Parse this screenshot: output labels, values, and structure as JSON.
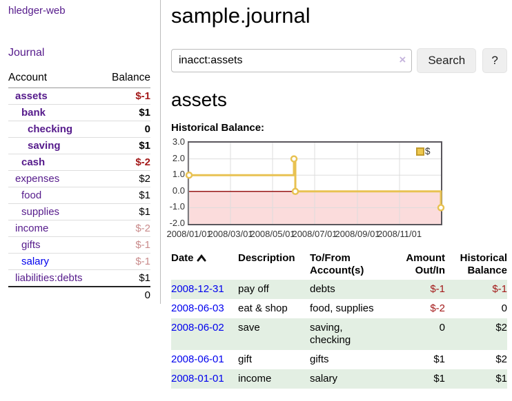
{
  "app": {
    "brand": "hledger-web"
  },
  "sidebar": {
    "journal_link": "Journal",
    "accounts": {
      "col_account": "Account",
      "col_balance": "Balance",
      "rows": [
        {
          "name": "assets",
          "balance": "$-1",
          "depth": 1,
          "bold": true,
          "name_color": "purple",
          "balance_style": "neg-strong"
        },
        {
          "name": "bank",
          "balance": "$1",
          "depth": 2,
          "bold": true,
          "name_color": "purple",
          "balance_style": "pos-strong"
        },
        {
          "name": "checking",
          "balance": "0",
          "depth": 3,
          "bold": true,
          "name_color": "purple",
          "balance_style": "pos-strong"
        },
        {
          "name": "saving",
          "balance": "$1",
          "depth": 3,
          "bold": true,
          "name_color": "purple",
          "balance_style": "pos-strong"
        },
        {
          "name": "cash",
          "balance": "$-2",
          "depth": 2,
          "bold": true,
          "name_color": "purple",
          "balance_style": "neg-strong"
        },
        {
          "name": "expenses",
          "balance": "$2",
          "depth": 1,
          "bold": false,
          "name_color": "purple",
          "balance_style": "pos"
        },
        {
          "name": "food",
          "balance": "$1",
          "depth": 2,
          "bold": false,
          "name_color": "purple",
          "balance_style": "pos"
        },
        {
          "name": "supplies",
          "balance": "$1",
          "depth": 2,
          "bold": false,
          "name_color": "purple",
          "balance_style": "pos"
        },
        {
          "name": "income",
          "balance": "$-2",
          "depth": 1,
          "bold": false,
          "name_color": "purple",
          "balance_style": "neg-soft"
        },
        {
          "name": "gifts",
          "balance": "$-1",
          "depth": 2,
          "bold": false,
          "name_color": "purple",
          "balance_style": "neg-soft"
        },
        {
          "name": "salary",
          "balance": "$-1",
          "depth": 2,
          "bold": false,
          "name_color": "blue",
          "balance_style": "neg-soft"
        },
        {
          "name": "liabilities:debts",
          "balance": "$1",
          "depth": 1,
          "bold": false,
          "name_color": "purple",
          "balance_style": "pos"
        }
      ],
      "total": "0"
    }
  },
  "main": {
    "title": "sample.journal",
    "search": {
      "value": "inacct:assets",
      "clear": "×",
      "search_button": "Search",
      "help_button": "?"
    },
    "account_title": "assets",
    "section_label": "Historical Balance:"
  },
  "chart_data": {
    "type": "line",
    "title": "Historical Balance",
    "legend_label": "$",
    "x_range": [
      "2008-01-01",
      "2008-12-31"
    ],
    "ylim": [
      -2,
      3
    ],
    "y_ticks": [
      "3.0",
      "2.0",
      "1.0",
      "0.0",
      "-1.0",
      "-2.0"
    ],
    "x_tick_labels": [
      "2008/01/01",
      "2008/03/01",
      "2008/05/01",
      "2008/07/01",
      "2008/09/01",
      "2008/11/01"
    ],
    "x_tick_dates": [
      "2008-01-01",
      "2008-03-01",
      "2008-05-01",
      "2008-07-01",
      "2008-09-01",
      "2008-11-01"
    ],
    "series": [
      {
        "name": "$",
        "color": "#e8c252",
        "points": [
          {
            "date": "2008-01-01",
            "value": 1
          },
          {
            "date": "2008-06-01",
            "value": 2
          },
          {
            "date": "2008-06-03",
            "value": 0
          },
          {
            "date": "2008-12-31",
            "value": -1
          }
        ]
      }
    ],
    "step": "after",
    "grid": true,
    "legend_position": "top-right",
    "zero_line_color": "#8b0000",
    "negative_fill": "#fbdcdc"
  },
  "register": {
    "headers": {
      "date": "Date",
      "description": "Description",
      "tofrom": "To/From Account(s)",
      "amount": "Amount Out/In",
      "balance": "Historical Balance"
    },
    "rows": [
      {
        "date": "2008-12-31",
        "description": "pay off",
        "accounts": "debts",
        "amount": "$-1",
        "balance": "$-1",
        "amount_neg": true,
        "balance_neg": true,
        "shaded": true
      },
      {
        "date": "2008-06-03",
        "description": "eat & shop",
        "accounts": "food, supplies",
        "amount": "$-2",
        "balance": "0",
        "amount_neg": true,
        "balance_neg": false,
        "shaded": false
      },
      {
        "date": "2008-06-02",
        "description": "save",
        "accounts": "saving, checking",
        "amount": "0",
        "balance": "$2",
        "amount_neg": false,
        "balance_neg": false,
        "shaded": true
      },
      {
        "date": "2008-06-01",
        "description": "gift",
        "accounts": "gifts",
        "amount": "$1",
        "balance": "$2",
        "amount_neg": false,
        "balance_neg": false,
        "shaded": false
      },
      {
        "date": "2008-01-01",
        "description": "income",
        "accounts": "salary",
        "amount": "$1",
        "balance": "$1",
        "amount_neg": false,
        "balance_neg": false,
        "shaded": true
      }
    ]
  },
  "colors": {
    "purple_link": "#551a8b",
    "blue_link": "#0000ee",
    "neg_strong": "#a31919",
    "neg_soft": "#c98b8b",
    "row_green": "#e3efe3",
    "chart_line": "#e8c252"
  }
}
